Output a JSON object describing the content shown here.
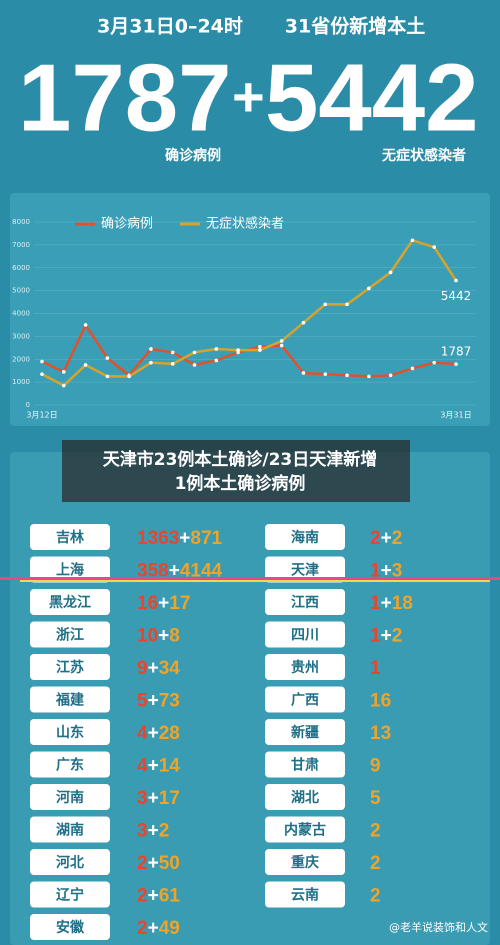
{
  "header": {
    "date": "3月31日0–24时",
    "scope": "31省份新增本土",
    "confirmed": 1787,
    "plus": "+",
    "asymptomatic": 5442,
    "confirmed_label": "确诊病例",
    "asymptomatic_label": "无症状感染者"
  },
  "chart_data": {
    "type": "line",
    "categories": [
      "3月12日",
      null,
      null,
      null,
      null,
      null,
      null,
      null,
      null,
      null,
      null,
      null,
      null,
      null,
      null,
      null,
      null,
      null,
      null,
      "3月31日"
    ],
    "series": [
      {
        "name": "确诊病例",
        "color": "#e0522c",
        "values": [
          1900,
          1450,
          3500,
          2050,
          1300,
          2450,
          2300,
          1750,
          1950,
          2300,
          2550,
          2600,
          1400,
          1350,
          1300,
          1250,
          1300,
          1600,
          1850,
          1787
        ]
      },
      {
        "name": "无症状感染者",
        "color": "#d9a22a",
        "values": [
          1350,
          850,
          1750,
          1250,
          1250,
          1850,
          1800,
          2300,
          2450,
          2400,
          2400,
          2800,
          3600,
          4400,
          4400,
          5100,
          5800,
          7200,
          6900,
          5442
        ]
      }
    ],
    "ylim": [
      0,
      8000
    ],
    "yticks": [
      0,
      1000,
      2000,
      3000,
      4000,
      5000,
      6000,
      7000,
      8000
    ],
    "grid": true,
    "legend": "top"
  },
  "caption": [
    "天津市23例本土确诊/23日天津新增",
    "1例本土确诊病例"
  ],
  "table": {
    "plus": "+",
    "confirmed_color": "#e8452c",
    "asymptomatic_color": "#f0a326",
    "left": [
      {
        "name": "吉林",
        "confirmed": 1363,
        "asymptomatic": 871
      },
      {
        "name": "上海",
        "confirmed": 358,
        "asymptomatic": 4144
      },
      {
        "name": "黑龙江",
        "confirmed": 16,
        "asymptomatic": 17
      },
      {
        "name": "浙江",
        "confirmed": 10,
        "asymptomatic": 8
      },
      {
        "name": "江苏",
        "confirmed": 9,
        "asymptomatic": 34
      },
      {
        "name": "福建",
        "confirmed": 5,
        "asymptomatic": 73
      },
      {
        "name": "山东",
        "confirmed": 4,
        "asymptomatic": 28
      },
      {
        "name": "广东",
        "confirmed": 4,
        "asymptomatic": 14
      },
      {
        "name": "河南",
        "confirmed": 3,
        "asymptomatic": 17
      },
      {
        "name": "湖南",
        "confirmed": 3,
        "asymptomatic": 2
      },
      {
        "name": "河北",
        "confirmed": 2,
        "asymptomatic": 50
      },
      {
        "name": "辽宁",
        "confirmed": 2,
        "asymptomatic": 61
      },
      {
        "name": "安徽",
        "confirmed": 2,
        "asymptomatic": 49
      }
    ],
    "right": [
      {
        "name": "海南",
        "confirmed": 2,
        "asymptomatic": 2
      },
      {
        "name": "天津",
        "confirmed": 1,
        "asymptomatic": 3
      },
      {
        "name": "江西",
        "confirmed": 1,
        "asymptomatic": 18
      },
      {
        "name": "四川",
        "confirmed": 1,
        "asymptomatic": 2
      },
      {
        "name": "贵州",
        "confirmed": 1,
        "asymptomatic": null
      },
      {
        "name": "广西",
        "confirmed": null,
        "asymptomatic": 16
      },
      {
        "name": "新疆",
        "confirmed": null,
        "asymptomatic": 13
      },
      {
        "name": "甘肃",
        "confirmed": null,
        "asymptomatic": 9
      },
      {
        "name": "湖北",
        "confirmed": null,
        "asymptomatic": 5
      },
      {
        "name": "内蒙古",
        "confirmed": null,
        "asymptomatic": 2
      },
      {
        "name": "重庆",
        "confirmed": null,
        "asymptomatic": 2
      },
      {
        "name": "云南",
        "confirmed": null,
        "asymptomatic": 2
      }
    ]
  },
  "watermark": "@老羊说装饰和人文"
}
